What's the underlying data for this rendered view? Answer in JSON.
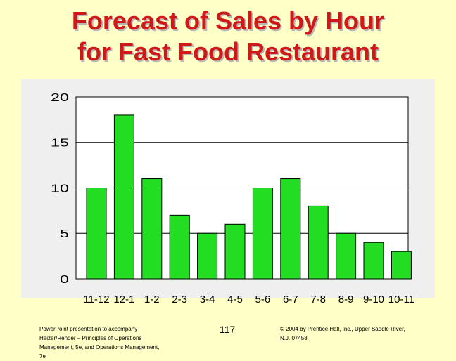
{
  "slide": {
    "title_line1": "Forecast of Sales by Hour",
    "title_line2": "for Fast Food Restaurant",
    "page_number": "117",
    "footer_left": [
      "PowerPoint presentation to accompany",
      "Heizer/Render – Principles of Operations",
      "Management, 5e, and Operations Management,",
      "7e"
    ],
    "footer_right": [
      "© 2004 by Prentice Hall, Inc., Upper Saddle River,",
      "N.J. 07458"
    ]
  },
  "colors": {
    "title": "#D01818",
    "background": "#FFFFC8",
    "bar_fill": "#22DD22",
    "plot_area": "#FFFFFF"
  },
  "chart_data": {
    "type": "bar",
    "title": "",
    "xlabel": "",
    "ylabel": "",
    "categories": [
      "11-12",
      "12-1",
      "1-2",
      "2-3",
      "3-4",
      "4-5",
      "5-6",
      "6-7",
      "7-8",
      "8-9",
      "9-10",
      "10-11"
    ],
    "series": [
      {
        "values": [
          10,
          18,
          11,
          7,
          5,
          6,
          10,
          11,
          8,
          5,
          4,
          3
        ]
      }
    ],
    "ylim": [
      0,
      20
    ],
    "yticks": [
      "0",
      "5",
      "10",
      "15",
      "20"
    ],
    "grid": true,
    "legend": "none"
  }
}
